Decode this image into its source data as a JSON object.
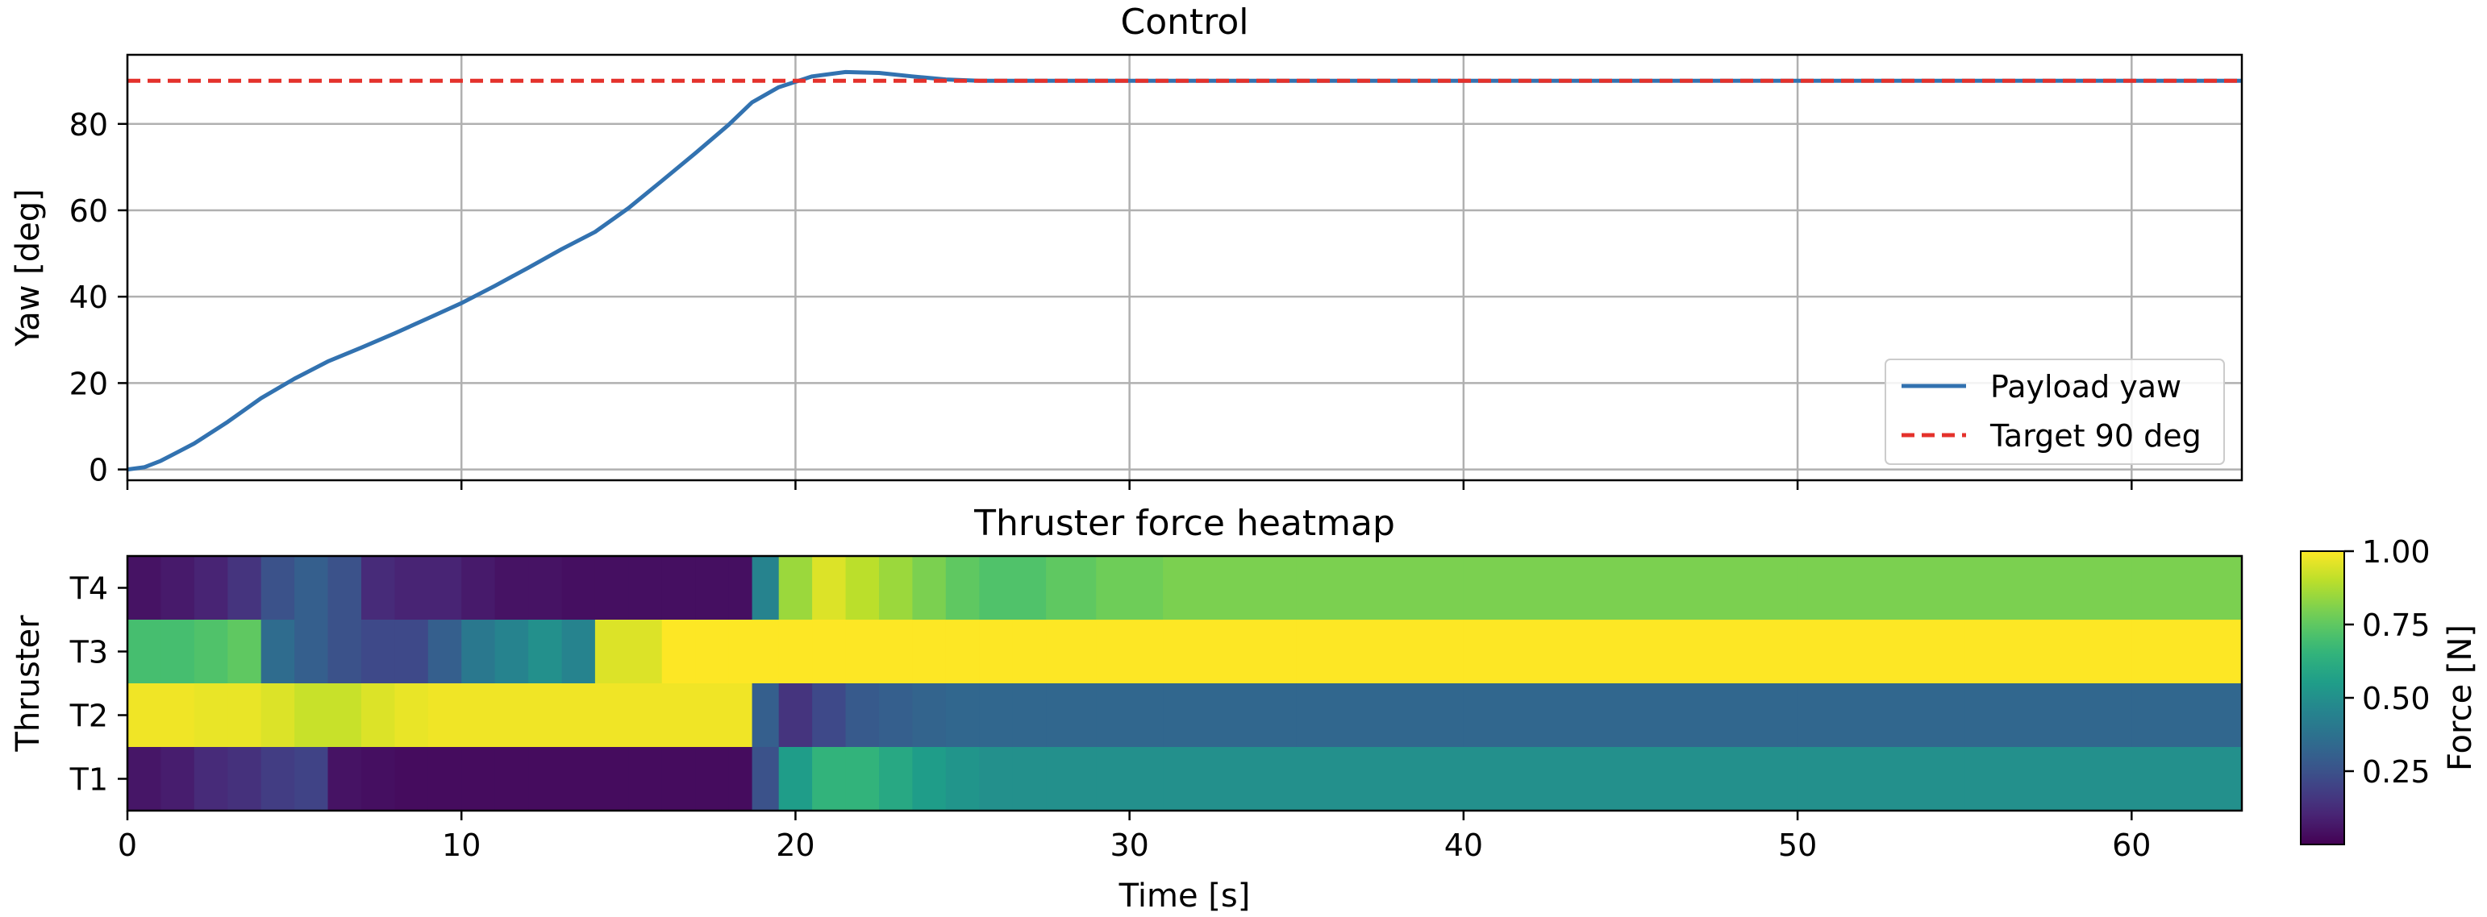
{
  "chart_data": [
    {
      "type": "line",
      "title": "Control",
      "xlabel": "",
      "ylabel": "Yaw [deg]",
      "xlim": [
        0,
        63.3
      ],
      "ylim": [
        -2.5,
        96
      ],
      "xticks": [
        0,
        10,
        20,
        30,
        40,
        50,
        60
      ],
      "yticks": [
        0,
        20,
        40,
        60,
        80
      ],
      "grid": true,
      "legend_position": "lower right",
      "series": [
        {
          "name": "Payload yaw",
          "color": "#3272b0",
          "style": "solid",
          "x": [
            0,
            0.5,
            1,
            1.5,
            2,
            3,
            4,
            5,
            6,
            7,
            8,
            9,
            10,
            11,
            12,
            13,
            14,
            15,
            16,
            17,
            18,
            18.7,
            19.5,
            20.5,
            21.5,
            22.5,
            23.5,
            24.5,
            25.5,
            26.5,
            27.5,
            28.5,
            30,
            35,
            40,
            50,
            63.3
          ],
          "y": [
            0,
            0.5,
            2,
            4,
            6,
            11,
            16.5,
            21,
            25,
            28.2,
            31.5,
            35,
            38.5,
            42.5,
            46.7,
            51,
            55,
            60.5,
            66.8,
            73.2,
            79.8,
            85,
            88.5,
            91,
            92,
            91.8,
            91,
            90.3,
            90,
            90,
            90,
            90,
            90,
            90,
            90,
            90,
            90
          ]
        },
        {
          "name": "Target 90 deg",
          "color": "#e4312b",
          "style": "dashed",
          "x": [
            0,
            63.3
          ],
          "y": [
            90,
            90
          ]
        }
      ]
    },
    {
      "type": "heatmap",
      "title": "Thruster force heatmap",
      "xlabel": "Time [s]",
      "ylabel": "Thruster",
      "xlim": [
        0,
        63.3
      ],
      "xticks": [
        0,
        10,
        20,
        30,
        40,
        50,
        60
      ],
      "rows": [
        "T4",
        "T3",
        "T2",
        "T1"
      ],
      "colormap": "viridis",
      "colorbar": {
        "label": "Force [N]",
        "range": [
          0,
          1
        ],
        "ticks": [
          1.0,
          0.75,
          0.5,
          0.25
        ],
        "tick_labels": [
          "1.00",
          "0.75",
          "0.50",
          "0.25"
        ]
      },
      "time": [
        0,
        1,
        2,
        3,
        4,
        5,
        6,
        7,
        8,
        9,
        10,
        11,
        12,
        13,
        14,
        15,
        16,
        17,
        18,
        18.7,
        19.5,
        20.5,
        21.5,
        22.5,
        23.5,
        24.5,
        25.5,
        26.5,
        27.5,
        29,
        31,
        35,
        40,
        45,
        50,
        55,
        60,
        63.3
      ],
      "values": {
        "T4": [
          0.05,
          0.07,
          0.1,
          0.15,
          0.25,
          0.3,
          0.25,
          0.12,
          0.1,
          0.1,
          0.07,
          0.05,
          0.05,
          0.04,
          0.04,
          0.04,
          0.04,
          0.04,
          0.04,
          0.45,
          0.85,
          0.95,
          0.9,
          0.85,
          0.8,
          0.75,
          0.72,
          0.72,
          0.75,
          0.78,
          0.8,
          0.8,
          0.8,
          0.8,
          0.8,
          0.8,
          0.8,
          0.8
        ],
        "T3": [
          0.7,
          0.7,
          0.72,
          0.75,
          0.35,
          0.3,
          0.25,
          0.22,
          0.22,
          0.3,
          0.4,
          0.45,
          0.5,
          0.45,
          0.95,
          0.95,
          1.0,
          1.0,
          1.0,
          1.0,
          1.0,
          1.0,
          1.0,
          1.0,
          1.0,
          1.0,
          1.0,
          1.0,
          1.0,
          1.0,
          1.0,
          1.0,
          1.0,
          1.0,
          1.0,
          1.0,
          1.0,
          1.0
        ],
        "T2": [
          0.98,
          0.98,
          0.97,
          0.97,
          0.95,
          0.92,
          0.92,
          0.95,
          0.97,
          0.98,
          0.98,
          0.98,
          0.98,
          0.98,
          0.98,
          0.98,
          0.98,
          0.98,
          0.98,
          0.3,
          0.15,
          0.22,
          0.28,
          0.3,
          0.32,
          0.33,
          0.33,
          0.33,
          0.33,
          0.33,
          0.33,
          0.33,
          0.33,
          0.33,
          0.33,
          0.33,
          0.33,
          0.33
        ],
        "T1": [
          0.06,
          0.08,
          0.12,
          0.14,
          0.18,
          0.2,
          0.05,
          0.04,
          0.03,
          0.03,
          0.03,
          0.03,
          0.03,
          0.03,
          0.03,
          0.03,
          0.03,
          0.03,
          0.03,
          0.25,
          0.55,
          0.65,
          0.65,
          0.6,
          0.55,
          0.52,
          0.5,
          0.5,
          0.5,
          0.5,
          0.5,
          0.5,
          0.5,
          0.5,
          0.5,
          0.5,
          0.5,
          0.5
        ]
      }
    }
  ]
}
